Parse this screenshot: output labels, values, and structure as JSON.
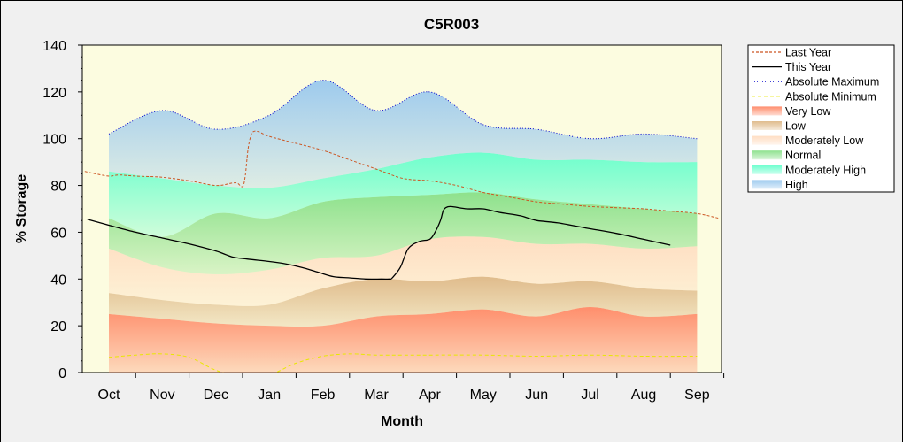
{
  "chart_data": {
    "type": "area",
    "title": "C5R003",
    "xlabel": "Month",
    "ylabel": "% Storage",
    "ylim": [
      0,
      140
    ],
    "yticks": [
      0,
      20,
      40,
      60,
      80,
      100,
      120,
      140
    ],
    "months": [
      "Oct",
      "Nov",
      "Dec",
      "Jan",
      "Feb",
      "Mar",
      "Apr",
      "May",
      "Jun",
      "Jul",
      "Aug",
      "Sep"
    ],
    "legend_position": "right",
    "grid": false,
    "band_x": [
      0.0,
      1.0,
      2.0,
      3.0,
      4.0,
      5.0,
      6.0,
      7.0,
      8.0,
      9.0,
      10.0,
      11.0
    ],
    "bands": [
      {
        "name": "Very Low",
        "color": "#ff8866",
        "lower": [
          0,
          0,
          0,
          0,
          0,
          0,
          0,
          0,
          0,
          0,
          0,
          0
        ],
        "upper": [
          25,
          23,
          21,
          20,
          20,
          24,
          25,
          27,
          24,
          28,
          24,
          25
        ]
      },
      {
        "name": "Low",
        "color": "#deb887",
        "lower": [
          25,
          23,
          21,
          20,
          20,
          24,
          25,
          27,
          24,
          28,
          24,
          25
        ],
        "upper": [
          34,
          31,
          29,
          29,
          36,
          40,
          39,
          41,
          38,
          39,
          36,
          35
        ]
      },
      {
        "name": "Moderately Low",
        "color": "#ffdcc0",
        "lower": [
          34,
          31,
          29,
          29,
          36,
          40,
          39,
          41,
          38,
          39,
          36,
          35
        ],
        "upper": [
          53,
          45,
          42,
          44,
          49,
          50,
          57,
          58,
          55,
          55,
          53,
          54
        ]
      },
      {
        "name": "Normal",
        "color": "#88e088",
        "lower": [
          53,
          45,
          42,
          44,
          49,
          50,
          57,
          58,
          55,
          55,
          53,
          54
        ],
        "upper": [
          66,
          58,
          68,
          66,
          73,
          75,
          76,
          77,
          74,
          72,
          70,
          68
        ]
      },
      {
        "name": "Moderately High",
        "color": "#66ffcc",
        "lower": [
          66,
          58,
          68,
          66,
          73,
          75,
          76,
          77,
          74,
          72,
          70,
          68
        ],
        "upper": [
          86,
          83,
          80,
          79,
          83,
          87,
          92,
          94,
          91,
          91,
          90,
          90
        ]
      },
      {
        "name": "High",
        "color": "#99c8ee",
        "lower": [
          86,
          83,
          80,
          79,
          83,
          87,
          92,
          94,
          91,
          91,
          90,
          90
        ],
        "upper": [
          102,
          112,
          104,
          110,
          125,
          112,
          120,
          106,
          104,
          100,
          102,
          100
        ]
      }
    ],
    "series": [
      {
        "name": "Last Year",
        "color": "#cc5522",
        "dash": "3,2",
        "x": [
          -0.45,
          -0.25,
          0,
          0.2,
          0.5,
          1,
          1.5,
          2,
          2.3,
          2.4,
          2.5,
          2.55,
          2.6,
          2.65,
          2.7,
          2.8,
          3,
          3.5,
          4,
          4.5,
          5,
          5.5,
          6,
          6.5,
          7,
          7.5,
          8,
          8.5,
          9,
          9.5,
          10,
          10.5,
          11,
          11.4
        ],
        "y": [
          86,
          85,
          84,
          84.5,
          84,
          83.5,
          82,
          80,
          81,
          81,
          79.5,
          84,
          95,
          101,
          103,
          103,
          101,
          98,
          95,
          91,
          87,
          83,
          82,
          80,
          77,
          75,
          73,
          72,
          71,
          70.5,
          70,
          69,
          68,
          66
        ]
      },
      {
        "name": "This Year",
        "color": "#000000",
        "dash": "",
        "x": [
          -0.4,
          0,
          0.5,
          1,
          1.5,
          2,
          2.3,
          2.6,
          3,
          3.3,
          3.6,
          3.9,
          4.2,
          4.5,
          4.8,
          5.1,
          5.25,
          5.3,
          5.45,
          5.6,
          5.8,
          6,
          6.1,
          6.2,
          6.25,
          6.3,
          6.4,
          6.7,
          7,
          7.3,
          7.7,
          8,
          8.4,
          9,
          9.5,
          10,
          10.5
        ],
        "y": [
          65.5,
          63,
          60,
          57.5,
          55,
          52,
          49.5,
          48.5,
          47.5,
          46.5,
          45,
          43,
          41,
          40.5,
          40,
          40,
          40,
          40.5,
          45,
          53,
          56,
          57,
          60,
          65,
          69,
          70.5,
          71,
          70,
          70,
          68.5,
          67,
          65,
          64,
          61.5,
          59.5,
          57,
          54.5
        ]
      },
      {
        "name": "Absolute Maximum",
        "color": "#0000cc",
        "dash": "1,2",
        "x": [
          0,
          1,
          2,
          3,
          4,
          5,
          6,
          7,
          8,
          9,
          10,
          11
        ],
        "y": [
          102,
          112,
          104,
          110,
          125,
          112,
          120,
          106,
          104,
          100,
          102,
          100
        ]
      },
      {
        "name": "Absolute Minimum",
        "color": "#e8e800",
        "dash": "4,3",
        "x": [
          0,
          0.5,
          1,
          1.5,
          2,
          2.5,
          3,
          3.5,
          4,
          4.5,
          5,
          5.5,
          6,
          7,
          8,
          9,
          10,
          11
        ],
        "y": [
          6.5,
          7.5,
          8,
          6.5,
          1,
          -2,
          -1,
          4,
          7,
          8,
          7.5,
          7.5,
          7.5,
          7.5,
          7,
          7.5,
          7,
          7
        ]
      }
    ],
    "legend": [
      "Last Year",
      "This Year",
      "Absolute Maximum",
      "Absolute Minimum",
      "Very Low",
      "Low",
      "Moderately Low",
      "Normal",
      "Moderately High",
      "High"
    ]
  }
}
